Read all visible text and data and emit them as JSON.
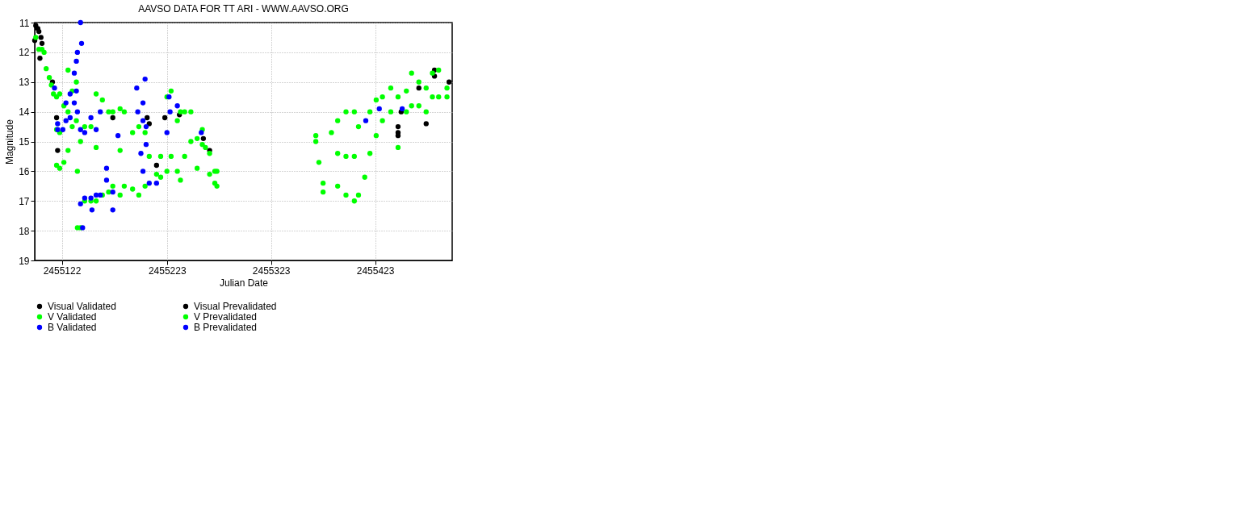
{
  "chart_data": {
    "type": "scatter",
    "title": "AAVSO DATA FOR TT ARI - WWW.AAVSO.ORG",
    "xlabel": "Julian Date",
    "ylabel": "Magnitude",
    "xlim": [
      2455096,
      2455497
    ],
    "xticks": [
      2455122,
      2455223,
      2455323,
      2455423
    ],
    "ylim": [
      19,
      11
    ],
    "yticks": [
      11,
      12,
      13,
      14,
      15,
      16,
      17,
      18,
      19
    ],
    "grid": true,
    "legend": "bottom",
    "marker": "circle",
    "series": [
      {
        "name": "Visual Validated",
        "color": "#000000",
        "x": [
          2455096,
          2455097,
          2455099,
          2455100,
          2455101,
          2455102,
          2455103,
          2455113,
          2455117,
          2455118,
          2455171,
          2455204,
          2455206,
          2455213,
          2455221,
          2455235,
          2455258,
          2455264
        ],
        "values": [
          11.6,
          11.1,
          11.2,
          11.3,
          12.2,
          11.5,
          11.7,
          13.0,
          14.2,
          15.3,
          14.2,
          14.2,
          14.4,
          15.8,
          14.2,
          14.1,
          14.9,
          15.3
        ]
      },
      {
        "name": "Visual Prevalidated",
        "color": "#000000",
        "x": [
          2455445,
          2455445,
          2455445,
          2455448,
          2455465,
          2455472,
          2455480,
          2455480,
          2455494
        ],
        "values": [
          14.5,
          14.7,
          14.8,
          14.0,
          13.2,
          14.4,
          12.6,
          12.8,
          13.0
        ]
      },
      {
        "name": "V Validated",
        "color": "#00ff00",
        "x": [
          2455097,
          2455100,
          2455103,
          2455105,
          2455107,
          2455110,
          2455112,
          2455114,
          2455117,
          2455117,
          2455117,
          2455120,
          2455120,
          2455120,
          2455124,
          2455124,
          2455128,
          2455128,
          2455128,
          2455132,
          2455132,
          2455136,
          2455136,
          2455137,
          2455137,
          2455140,
          2455140,
          2455144,
          2455144,
          2455150,
          2455150,
          2455155,
          2455155,
          2455155,
          2455161,
          2455161,
          2455167,
          2455167,
          2455171,
          2455171,
          2455178,
          2455178,
          2455178,
          2455182,
          2455182,
          2455190,
          2455190,
          2455196,
          2455196,
          2455202,
          2455202,
          2455206,
          2455213,
          2455217,
          2455217,
          2455223,
          2455223,
          2455227,
          2455227,
          2455233,
          2455233,
          2455236,
          2455236,
          2455240,
          2455240,
          2455246,
          2455246,
          2455252,
          2455252,
          2455257,
          2455257,
          2455260,
          2455264,
          2455264,
          2455269,
          2455269,
          2455271,
          2455271
        ],
        "values": [
          11.5,
          11.9,
          11.9,
          12.0,
          12.55,
          12.85,
          13.1,
          13.4,
          13.5,
          14.6,
          15.8,
          13.4,
          14.7,
          15.9,
          13.8,
          15.7,
          12.6,
          14.0,
          15.3,
          13.3,
          14.5,
          13.0,
          14.3,
          16.0,
          17.9,
          15.0,
          17.9,
          14.5,
          17.0,
          14.5,
          17.0,
          13.4,
          15.2,
          17.0,
          13.6,
          16.8,
          14.0,
          16.7,
          14.0,
          16.5,
          13.9,
          15.3,
          16.8,
          14.0,
          16.5,
          14.7,
          16.6,
          14.5,
          16.8,
          14.7,
          16.5,
          15.5,
          16.1,
          15.5,
          16.2,
          13.5,
          16.0,
          13.3,
          15.5,
          14.3,
          16.0,
          14.0,
          16.3,
          14.0,
          15.5,
          14.0,
          15.0,
          14.9,
          15.9,
          14.6,
          15.1,
          15.2,
          15.4,
          16.1,
          16.0,
          16.4,
          16.0,
          16.5
        ]
      },
      {
        "name": "V Prevalidated",
        "color": "#00ff00",
        "x": [
          2455366,
          2455366,
          2455369,
          2455373,
          2455373,
          2455381,
          2455387,
          2455387,
          2455387,
          2455395,
          2455395,
          2455395,
          2455403,
          2455403,
          2455403,
          2455407,
          2455407,
          2455413,
          2455418,
          2455418,
          2455424,
          2455424,
          2455430,
          2455430,
          2455438,
          2455438,
          2455445,
          2455445,
          2455453,
          2455453,
          2455458,
          2455458,
          2455465,
          2455465,
          2455472,
          2455472,
          2455478,
          2455478,
          2455484,
          2455484,
          2455492,
          2455492
        ],
        "values": [
          14.8,
          15.0,
          15.7,
          16.4,
          16.7,
          14.7,
          14.3,
          15.4,
          16.5,
          14.0,
          15.5,
          16.8,
          14.0,
          15.5,
          17.0,
          14.5,
          16.8,
          16.2,
          14.0,
          15.4,
          13.6,
          14.8,
          13.5,
          14.3,
          13.2,
          14.0,
          13.5,
          15.2,
          13.3,
          14.0,
          12.7,
          13.8,
          13.0,
          13.8,
          13.2,
          14.0,
          12.7,
          13.5,
          12.6,
          13.5,
          13.2,
          13.5
        ]
      },
      {
        "name": "B Validated",
        "color": "#0000ff",
        "x": [
          2455115,
          2455118,
          2455118,
          2455123,
          2455126,
          2455126,
          2455130,
          2455130,
          2455134,
          2455134,
          2455136,
          2455136,
          2455137,
          2455137,
          2455140,
          2455141,
          2455140,
          2455140,
          2455142,
          2455144,
          2455144,
          2455150,
          2455150,
          2455151,
          2455155,
          2455155,
          2455159,
          2455159,
          2455165,
          2455165,
          2455171,
          2455171,
          2455176,
          2455194,
          2455195,
          2455198,
          2455200,
          2455200,
          2455200,
          2455202,
          2455203,
          2455203,
          2455206,
          2455213
        ],
        "values": [
          13.2,
          14.4,
          14.6,
          14.6,
          13.7,
          14.3,
          13.4,
          14.2,
          12.7,
          13.7,
          12.3,
          13.3,
          12.0,
          14.0,
          11.0,
          11.7,
          14.6,
          17.1,
          17.9,
          14.7,
          16.9,
          14.2,
          16.9,
          17.3,
          14.6,
          16.8,
          14.0,
          16.8,
          15.9,
          16.3,
          16.7,
          17.3,
          14.8,
          13.2,
          14.0,
          15.4,
          13.7,
          14.3,
          16.0,
          12.9,
          14.5,
          15.1,
          16.4,
          16.4
        ]
      },
      {
        "name": "B Prevalidated",
        "color": "#0000ff",
        "x": [
          2455223,
          2455225,
          2455226,
          2455233,
          2455256,
          2455414,
          2455427,
          2455449
        ],
        "values": [
          14.7,
          13.5,
          14.0,
          13.8,
          14.7,
          14.3,
          13.9,
          13.9
        ]
      }
    ]
  }
}
